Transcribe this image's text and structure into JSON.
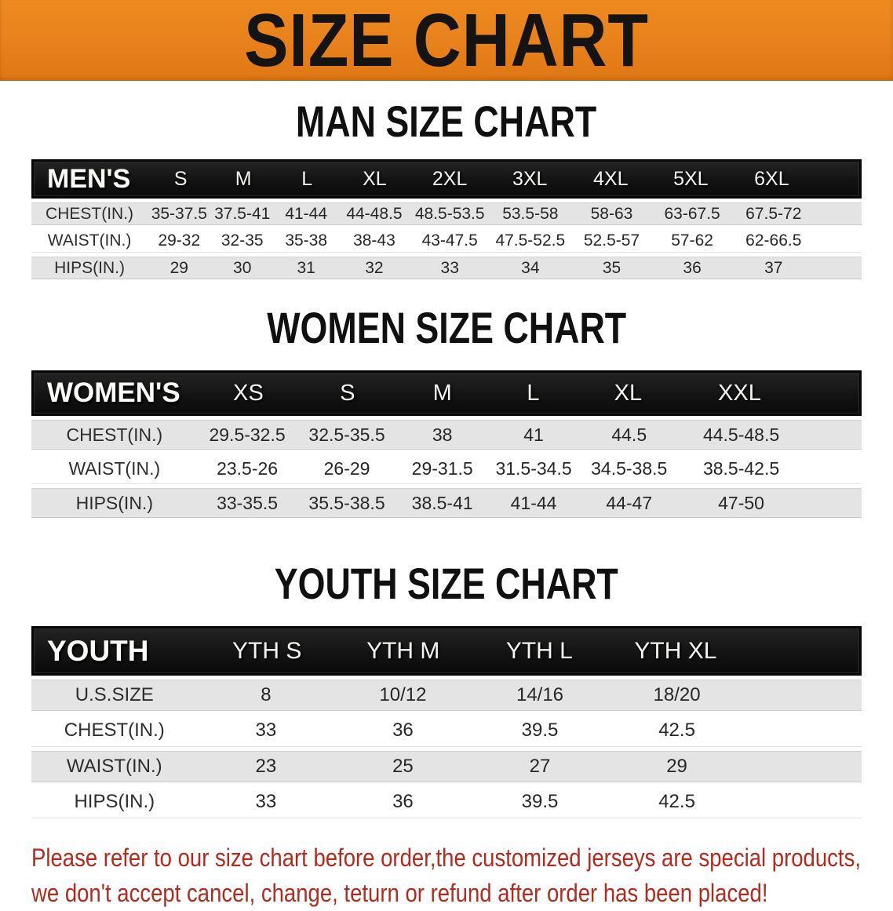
{
  "banner": {
    "title": "SIZE CHART",
    "bg_color": "#e8811b",
    "text_color": "#141414"
  },
  "colors": {
    "table_header_bg": "#141414",
    "row_gray": "#e4e4e4",
    "row_white": "#ffffff",
    "disclaimer_red": "#b22b1e"
  },
  "sections": [
    {
      "heading": "MAN SIZE CHART",
      "table": {
        "label": "MEN'S",
        "columns": [
          "S",
          "M",
          "L",
          "XL",
          "2XL",
          "3XL",
          "4XL",
          "5XL",
          "6XL"
        ],
        "rows": [
          {
            "label": "CHEST(IN.)",
            "values": [
              "35-37.5",
              "37.5-41",
              "41-44",
              "44-48.5",
              "48.5-53.5",
              "53.5-58",
              "58-63",
              "63-67.5",
              "67.5-72"
            ]
          },
          {
            "label": "WAIST(IN.)",
            "values": [
              "29-32",
              "32-35",
              "35-38",
              "38-43",
              "43-47.5",
              "47.5-52.5",
              "52.5-57",
              "57-62",
              "62-66.5"
            ]
          },
          {
            "label": "HIPS(IN.)",
            "values": [
              "29",
              "30",
              "31",
              "32",
              "33",
              "34",
              "35",
              "36",
              "37"
            ]
          }
        ]
      }
    },
    {
      "heading": "WOMEN SIZE CHART",
      "table": {
        "label": "WOMEN'S",
        "columns": [
          "XS",
          "S",
          "M",
          "L",
          "XL",
          "XXL"
        ],
        "rows": [
          {
            "label": "CHEST(IN.)",
            "values": [
              "29.5-32.5",
              "32.5-35.5",
              "38",
              "41",
              "44.5",
              "44.5-48.5"
            ]
          },
          {
            "label": "WAIST(IN.)",
            "values": [
              "23.5-26",
              "26-29",
              "29-31.5",
              "31.5-34.5",
              "34.5-38.5",
              "38.5-42.5"
            ]
          },
          {
            "label": "HIPS(IN.)",
            "values": [
              "33-35.5",
              "35.5-38.5",
              "38.5-41",
              "41-44",
              "44-47",
              "47-50"
            ]
          }
        ]
      }
    },
    {
      "heading": "YOUTH SIZE CHART",
      "table": {
        "label": "YOUTH",
        "columns": [
          "YTH S",
          "YTH M",
          "YTH L",
          "YTH XL"
        ],
        "rows": [
          {
            "label": "U.S.SIZE",
            "values": [
              "8",
              "10/12",
              "14/16",
              "18/20"
            ]
          },
          {
            "label": "CHEST(IN.)",
            "values": [
              "33",
              "36",
              "39.5",
              "42.5"
            ]
          },
          {
            "label": "WAIST(IN.)",
            "values": [
              "23",
              "25",
              "27",
              "29"
            ]
          },
          {
            "label": "HIPS(IN.)",
            "values": [
              "33",
              "36",
              "39.5",
              "42.5"
            ]
          }
        ]
      }
    }
  ],
  "disclaimer": {
    "line1": "Please refer to our size chart before order,the customized jerseys are special products,",
    "line2": "we don't accept cancel, change, teturn or refund after order has been placed!"
  }
}
